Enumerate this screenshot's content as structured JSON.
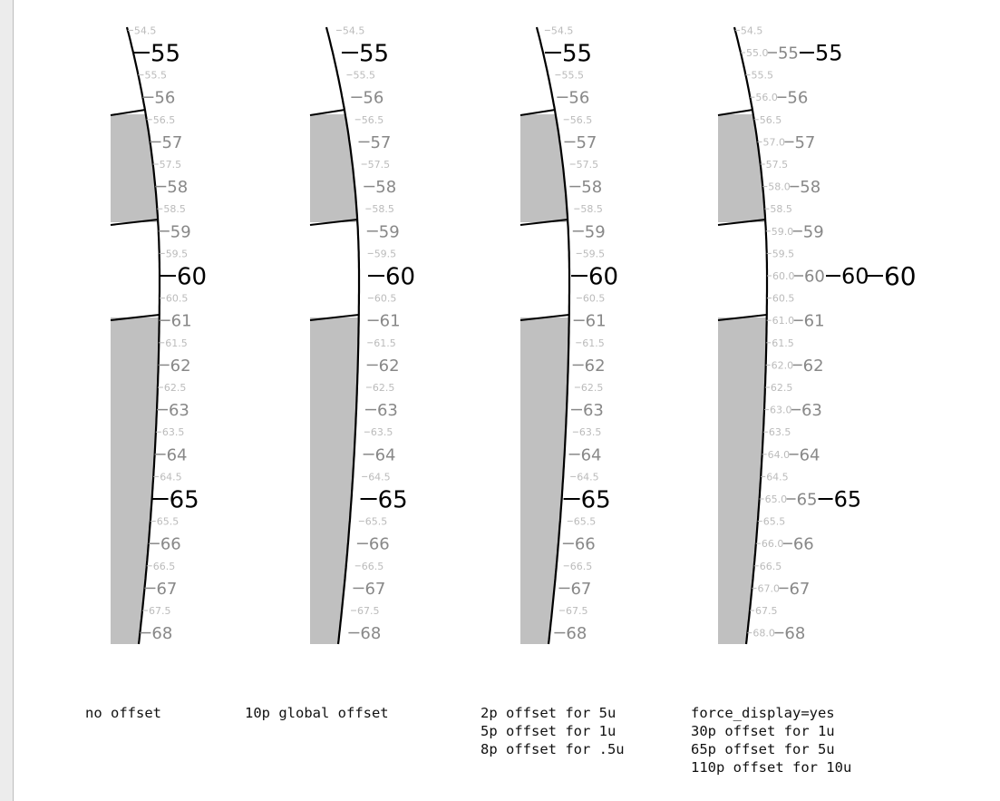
{
  "panels": [
    {
      "name": "no-offset",
      "ticks": {
        "major": [
          "55",
          "60",
          "65"
        ],
        "mid": [
          "56",
          "57",
          "58",
          "59",
          "61",
          "62",
          "63",
          "64",
          "66",
          "67",
          "68"
        ],
        "minor": [
          "54.5",
          "55.5",
          "56.5",
          "57.5",
          "58.5",
          "59.5",
          "60.5",
          "61.5",
          "62.5",
          "63.5",
          "64.5",
          "65.5",
          "66.5",
          "67.5"
        ]
      },
      "caption": [
        "no offset"
      ]
    },
    {
      "name": "10p-global-offset",
      "ticks": {
        "major": [
          "55",
          "60",
          "65"
        ],
        "mid": [
          "56",
          "57",
          "58",
          "59",
          "61",
          "62",
          "63",
          "64",
          "66",
          "67",
          "68"
        ],
        "minor": [
          "54.5",
          "55.5",
          "56.5",
          "57.5",
          "58.5",
          "59.5",
          "60.5",
          "61.5",
          "62.5",
          "63.5",
          "64.5",
          "65.5",
          "66.5",
          "67.5"
        ]
      },
      "caption": [
        "10p global offset"
      ]
    },
    {
      "name": "per-unit-offset",
      "ticks": {
        "major": [
          "55",
          "60",
          "65"
        ],
        "mid": [
          "56",
          "57",
          "58",
          "59",
          "61",
          "62",
          "63",
          "64",
          "66",
          "67",
          "68"
        ],
        "minor": [
          "54.5",
          "55.5",
          "56.5",
          "57.5",
          "58.5",
          "59.5",
          "60.5",
          "61.5",
          "62.5",
          "63.5",
          "64.5",
          "65.5",
          "66.5",
          "67.5"
        ]
      },
      "caption": [
        "2p offset for 5u",
        "5p offset for 1u",
        "8p offset for .5u"
      ]
    },
    {
      "name": "force-display",
      "ticks": {
        "major": [
          "55",
          "60",
          "65"
        ],
        "mid": [
          "56",
          "57",
          "58",
          "59",
          "61",
          "62",
          "63",
          "64",
          "66",
          "67",
          "68"
        ],
        "minor": [
          "54.5",
          "55.5",
          "56.5",
          "57.5",
          "58.5",
          "59.5",
          "60.5",
          "61.5",
          "62.5",
          "63.5",
          "64.5",
          "65.5",
          "66.5",
          "67.5"
        ],
        "forced": [
          "55.0",
          "56.0",
          "57.0",
          "58.0",
          "59.0",
          "60.0",
          "61.0",
          "62.0",
          "63.0",
          "64.0",
          "65.0",
          "66.0",
          "67.0",
          "68.0"
        ],
        "forced_5": [
          "55",
          "60",
          "65"
        ],
        "forced_10": [
          "60"
        ]
      },
      "caption": [
        "force_display=yes",
        "30p offset for 1u",
        "65p offset for 5u",
        "110p offset for 10u"
      ]
    }
  ]
}
